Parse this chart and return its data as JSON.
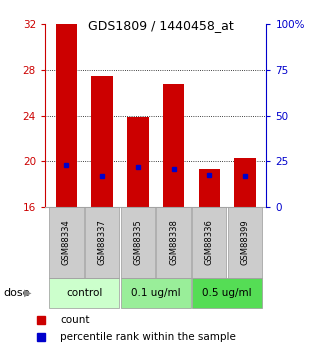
{
  "title": "GDS1809 / 1440458_at",
  "samples": [
    "GSM88334",
    "GSM88337",
    "GSM88335",
    "GSM88338",
    "GSM88336",
    "GSM88399"
  ],
  "bar_tops": [
    32.0,
    27.5,
    23.9,
    26.8,
    19.3,
    20.3
  ],
  "bar_bottom": 16.0,
  "blue_marker_values": [
    19.7,
    18.7,
    19.5,
    19.3,
    18.8,
    18.7
  ],
  "ylim": [
    16,
    32
  ],
  "yticks_left": [
    16,
    20,
    24,
    28,
    32
  ],
  "yticks_right": [
    0,
    25,
    50,
    75,
    100
  ],
  "yright_lim": [
    0,
    100
  ],
  "bar_color": "#cc0000",
  "blue_color": "#0000cc",
  "groups": [
    {
      "label": "control",
      "indices": [
        0,
        1
      ],
      "color": "#ccffcc"
    },
    {
      "label": "0.1 ug/ml",
      "indices": [
        2,
        3
      ],
      "color": "#99ee99"
    },
    {
      "label": "0.5 ug/ml",
      "indices": [
        4,
        5
      ],
      "color": "#55dd55"
    }
  ],
  "dose_label": "dose",
  "legend_count": "count",
  "legend_percentile": "percentile rank within the sample",
  "bar_width": 0.6,
  "tick_label_bg": "#cccccc",
  "grid_lines": [
    20,
    24,
    28
  ]
}
